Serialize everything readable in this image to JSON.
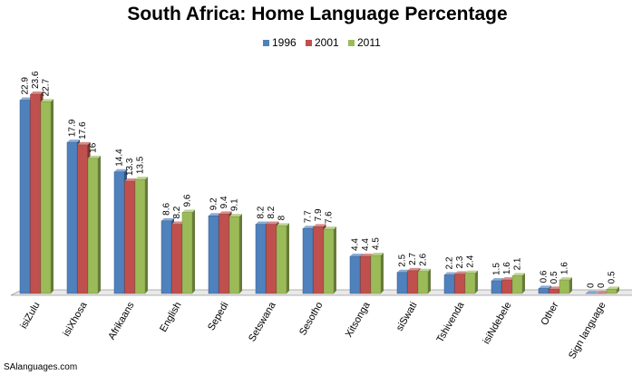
{
  "chart_data": {
    "type": "bar",
    "title": "South Africa: Home Language Percentage",
    "categories": [
      "isiZulu",
      "isiXhosa",
      "Afrikaans",
      "English",
      "Sepedi",
      "Setswana",
      "Sesotho",
      "Xitsonga",
      "siSwati",
      "Tshivenda",
      "isiNdebele",
      "Other",
      "Sign language"
    ],
    "series": [
      {
        "name": "1996",
        "color": "#4f81bd",
        "values": [
          22.9,
          17.9,
          14.4,
          8.6,
          9.2,
          8.2,
          7.7,
          4.4,
          2.5,
          2.2,
          1.5,
          0.6,
          0
        ]
      },
      {
        "name": "2001",
        "color": "#c0504d",
        "values": [
          23.6,
          17.6,
          13.3,
          8.2,
          9.4,
          8.2,
          7.9,
          4.4,
          2.7,
          2.3,
          1.6,
          0.5,
          0
        ]
      },
      {
        "name": "2011",
        "color": "#9bbb59",
        "values": [
          22.7,
          16,
          13.5,
          9.6,
          9.1,
          8,
          7.6,
          4.5,
          2.6,
          2.4,
          2.1,
          1.6,
          0.5
        ]
      }
    ],
    "value_labels": [
      [
        "22.9",
        "23.6",
        "22.7"
      ],
      [
        "17.9",
        "17.6",
        "16"
      ],
      [
        "14.4",
        "13.3",
        "13.5"
      ],
      [
        "8.6",
        "8.2",
        "9.6"
      ],
      [
        "9.2",
        "9.4",
        "9.1"
      ],
      [
        "8.2",
        "8.2",
        "8"
      ],
      [
        "7.7",
        "7.9",
        "7.6"
      ],
      [
        "4.4",
        "4.4",
        "4.5"
      ],
      [
        "2.5",
        "2.7",
        "2.6"
      ],
      [
        "2.2",
        "2.3",
        "2.4"
      ],
      [
        "1.5",
        "1.6",
        "2.1"
      ],
      [
        "0.6",
        "0.5",
        "1.6"
      ],
      [
        "0",
        "0",
        "0.5"
      ]
    ],
    "ylim": [
      0,
      24
    ],
    "legend": "top",
    "grid": false,
    "style": "3d-clustered-column"
  },
  "credit": "SAlanguages.com"
}
